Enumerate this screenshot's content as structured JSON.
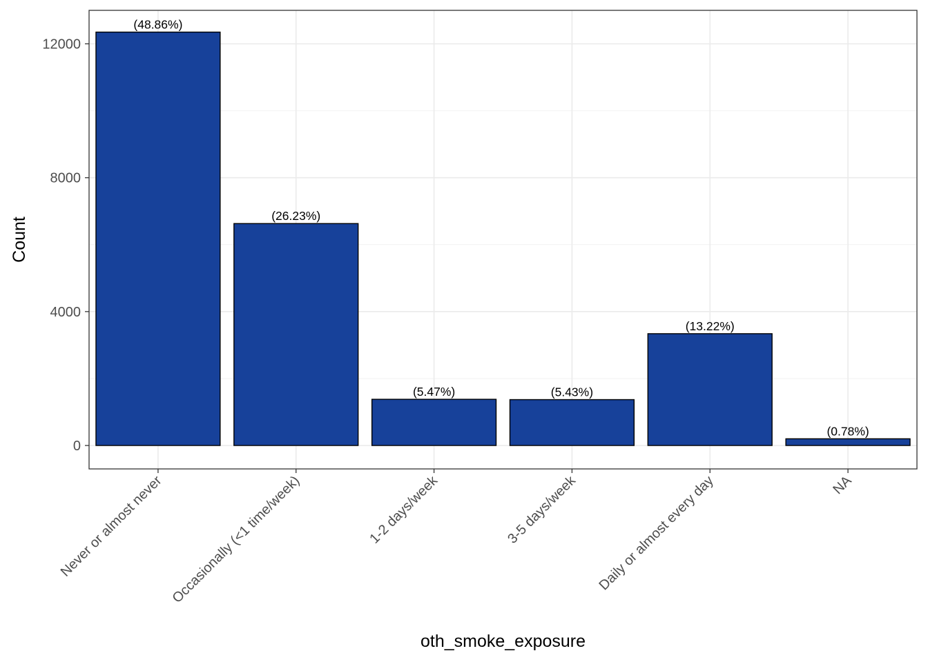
{
  "chart_data": {
    "type": "bar",
    "categories": [
      "Never or almost never",
      "Occasionally (<1 time/week)",
      "1-2 days/week",
      "3-5 days/week",
      "Daily or almost every day",
      "NA"
    ],
    "values": [
      12350,
      6630,
      1380,
      1370,
      3340,
      200
    ],
    "data_labels": [
      "(48.86%)",
      "(26.23%)",
      "(5.47%)",
      "(5.43%)",
      "(13.22%)",
      "(0.78%)"
    ],
    "title": "",
    "xlabel": "oth_smoke_exposure",
    "ylabel": "Count",
    "ylim": [
      -700,
      13000
    ],
    "y_ticks": [
      0,
      4000,
      8000,
      12000
    ],
    "y_tick_labels": [
      "0",
      "4000",
      "8000",
      "12000"
    ],
    "grid": true,
    "legend": "none",
    "colors": {
      "bar_fill": "#17419A",
      "bar_stroke": "#000000",
      "grid_major": "#ebebeb",
      "grid_minor": "#f2f2f2",
      "panel_border": "#333333",
      "tick_text": "#4d4d4d"
    }
  }
}
